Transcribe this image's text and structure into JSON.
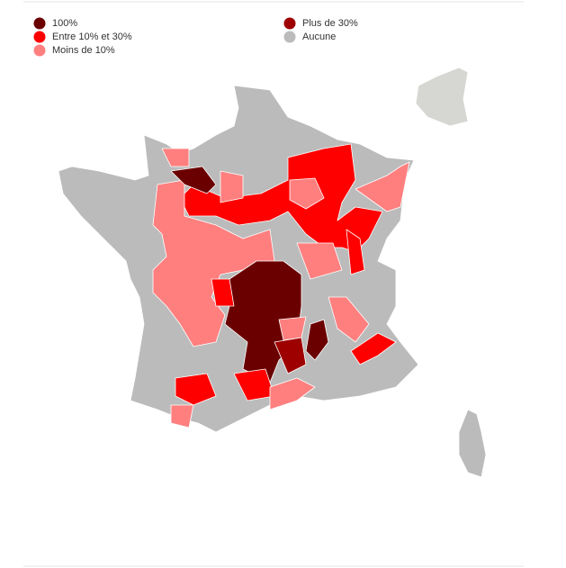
{
  "legend": {
    "items": [
      {
        "name": "100%",
        "color": "#6b0000"
      },
      {
        "name": "Entre 10% et 30%",
        "color": "#ff0000"
      },
      {
        "name": "Moins de 10%",
        "color": "#ff7f7f"
      },
      {
        "name": "Plus de 30%",
        "color": "#9e0000"
      },
      {
        "name": "Aucune",
        "color": "#bbbbbb"
      }
    ]
  }
}
